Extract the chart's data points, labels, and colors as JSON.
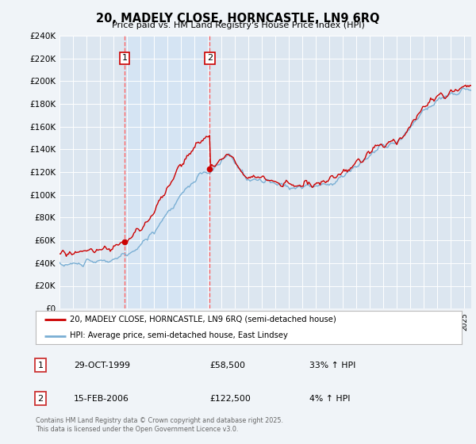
{
  "title": "20, MADELY CLOSE, HORNCASTLE, LN9 6RQ",
  "subtitle": "Price paid vs. HM Land Registry's House Price Index (HPI)",
  "background_color": "#f0f4f8",
  "plot_bg_color": "#dce6f0",
  "grid_color": "#ffffff",
  "shaded_region_color": "#d0e4f7",
  "ylim": [
    0,
    240000
  ],
  "yticks": [
    0,
    20000,
    40000,
    60000,
    80000,
    100000,
    120000,
    140000,
    160000,
    180000,
    200000,
    220000,
    240000
  ],
  "ytick_labels": [
    "£0",
    "£20K",
    "£40K",
    "£60K",
    "£80K",
    "£100K",
    "£120K",
    "£140K",
    "£160K",
    "£180K",
    "£200K",
    "£220K",
    "£240K"
  ],
  "xlim_start": 1995,
  "xlim_end": 2025.5,
  "sale1_x": 1999.83,
  "sale1_y": 58500,
  "sale2_x": 2006.12,
  "sale2_y": 122500,
  "legend_line1": "20, MADELY CLOSE, HORNCASTLE, LN9 6RQ (semi-detached house)",
  "legend_line2": "HPI: Average price, semi-detached house, East Lindsey",
  "table_rows": [
    {
      "num": "1",
      "date": "29-OCT-1999",
      "price": "£58,500",
      "hpi": "33% ↑ HPI"
    },
    {
      "num": "2",
      "date": "15-FEB-2006",
      "price": "£122,500",
      "hpi": "4% ↑ HPI"
    }
  ],
  "footer": "Contains HM Land Registry data © Crown copyright and database right 2025.\nThis data is licensed under the Open Government Licence v3.0.",
  "red_color": "#cc0000",
  "blue_color": "#7aafd4",
  "vline_color": "#ff6666",
  "label_color": "#cc0000"
}
